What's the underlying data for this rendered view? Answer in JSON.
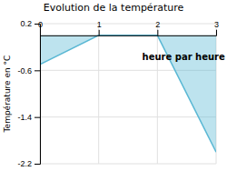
{
  "chart_data": {
    "type": "area",
    "title": "Evolution de la température",
    "xlabel": "heure par heure",
    "ylabel": "Température en °C",
    "x": [
      0,
      1,
      2,
      3
    ],
    "values": [
      -0.5,
      0.0,
      0.0,
      -2.0
    ],
    "color": "#5bb8d4",
    "xlim": [
      0,
      3
    ],
    "ylim": [
      -2.2,
      0.2
    ],
    "xticks": [
      0,
      1,
      2,
      3
    ],
    "yticks": [
      0.2,
      -0.6,
      -1.4,
      -2.2
    ],
    "grid": true
  }
}
